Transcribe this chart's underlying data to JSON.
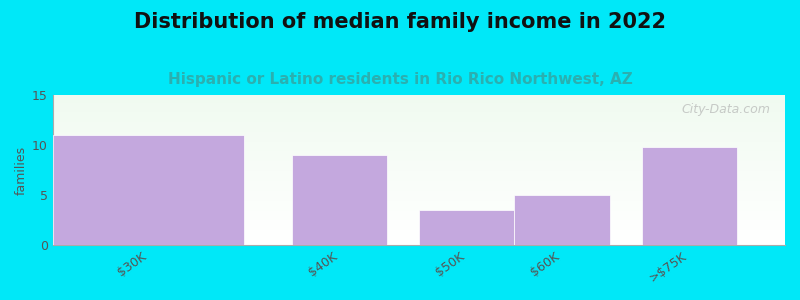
{
  "title": "Distribution of median family income in 2022",
  "subtitle": "Hispanic or Latino residents in Rio Rico Northwest, AZ",
  "categories": [
    "$30K",
    "$40K",
    "$50K",
    "$60K",
    ">$75K"
  ],
  "values": [
    11,
    9,
    3.5,
    5,
    9.8
  ],
  "bar_color": "#c4a8de",
  "bar_edge_color": "#ffffff",
  "ylabel": "families",
  "ylim": [
    0,
    15
  ],
  "yticks": [
    0,
    5,
    10,
    15
  ],
  "background_color": "#00e8f8",
  "title_fontsize": 15,
  "subtitle_fontsize": 11,
  "subtitle_color": "#2ab0b0",
  "title_color": "#111111",
  "watermark_text": "City-Data.com",
  "ylabel_fontsize": 9,
  "tick_fontsize": 9,
  "bar_width": 1.0,
  "bar_positions": [
    1.5,
    4.5,
    6.5,
    8.0,
    10.0
  ],
  "bar_widths": [
    3.0,
    1.5,
    1.5,
    1.5,
    1.5
  ],
  "xlim": [
    0,
    11.5
  ]
}
